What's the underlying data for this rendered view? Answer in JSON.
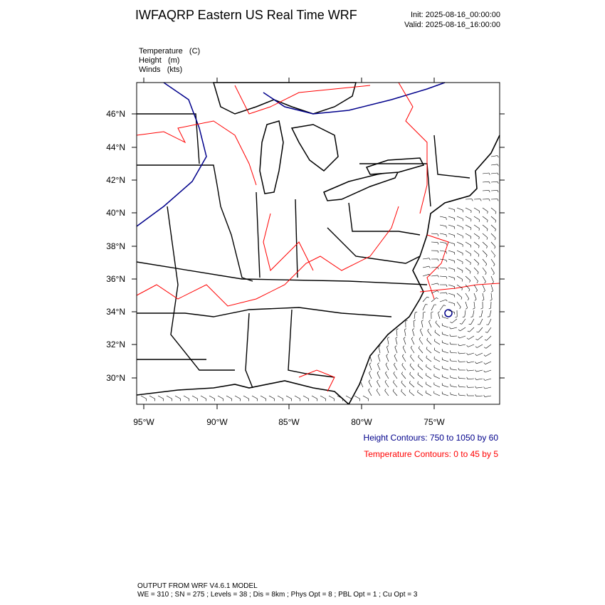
{
  "header": {
    "title": "IWFAQRP Eastern US Real Time WRF",
    "init": "Init: 2025-08-16_00:00:00",
    "valid": "Valid: 2025-08-16_16:00:00"
  },
  "fields": [
    "Temperature   (C)",
    "Height   (m)",
    "Winds   (kts)"
  ],
  "map": {
    "lat_labels": [
      "46°N",
      "44°N",
      "42°N",
      "40°N",
      "38°N",
      "36°N",
      "34°N",
      "32°N",
      "30°N"
    ],
    "lon_labels": [
      "95°W",
      "90°W",
      "85°W",
      "80°W",
      "75°W"
    ]
  },
  "legend": {
    "height": "Height Contours: 750 to 1050 by 60",
    "temperature": "Temperature Contours: 0 to 45 by 5"
  },
  "footer": {
    "model": "OUTPUT FROM WRF V4.6.1 MODEL",
    "settings": "WE = 310 ; SN = 275 ; Levels = 38 ; Dis = 8km ; Phys Opt = 8 ; PBL Opt = 1 ; Cu Opt = 3"
  }
}
